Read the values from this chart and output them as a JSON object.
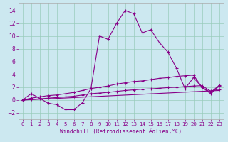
{
  "xlabel": "Windchill (Refroidissement éolien,°C)",
  "background_color": "#cce8f0",
  "grid_color": "#99ccbb",
  "line_color": "#880088",
  "x_ticks": [
    0,
    1,
    2,
    3,
    4,
    5,
    6,
    7,
    8,
    9,
    10,
    11,
    12,
    13,
    14,
    15,
    16,
    17,
    18,
    19,
    20,
    21,
    22,
    23
  ],
  "y_ticks": [
    -2,
    0,
    2,
    4,
    6,
    8,
    10,
    12,
    14
  ],
  "xlim": [
    -0.5,
    23.5
  ],
  "ylim": [
    -3.0,
    15.2
  ],
  "line1_x": [
    0,
    1,
    2,
    3,
    4,
    5,
    6,
    7,
    8,
    9,
    10,
    11,
    12,
    13,
    14,
    15,
    16,
    17,
    18,
    19,
    20,
    21,
    22,
    23
  ],
  "line1_y": [
    0.0,
    1.0,
    0.3,
    -0.5,
    -0.7,
    -1.5,
    -1.5,
    -0.4,
    1.8,
    10.0,
    9.5,
    12.0,
    14.0,
    13.5,
    10.5,
    11.0,
    9.0,
    7.5,
    5.0,
    1.8,
    3.5,
    2.0,
    1.0,
    2.2
  ],
  "line2_x": [
    0,
    1,
    2,
    3,
    4,
    5,
    6,
    7,
    8,
    9,
    10,
    11,
    12,
    13,
    14,
    15,
    16,
    17,
    18,
    19,
    20,
    21,
    22,
    23
  ],
  "line2_y": [
    0.0,
    0.3,
    0.5,
    0.7,
    0.8,
    1.0,
    1.2,
    1.5,
    1.8,
    2.0,
    2.2,
    2.5,
    2.7,
    2.9,
    3.0,
    3.2,
    3.4,
    3.5,
    3.7,
    3.8,
    3.9,
    2.0,
    1.2,
    2.3
  ],
  "line3_x": [
    0,
    1,
    2,
    3,
    4,
    5,
    6,
    7,
    8,
    9,
    10,
    11,
    12,
    13,
    14,
    15,
    16,
    17,
    18,
    19,
    20,
    21,
    22,
    23
  ],
  "line3_y": [
    0.0,
    0.1,
    0.2,
    0.3,
    0.4,
    0.5,
    0.6,
    0.8,
    1.0,
    1.1,
    1.2,
    1.35,
    1.5,
    1.6,
    1.7,
    1.75,
    1.85,
    1.95,
    2.0,
    2.1,
    2.2,
    2.25,
    1.4,
    1.7
  ],
  "line4_x": [
    0,
    23
  ],
  "line4_y": [
    0.0,
    1.5
  ]
}
